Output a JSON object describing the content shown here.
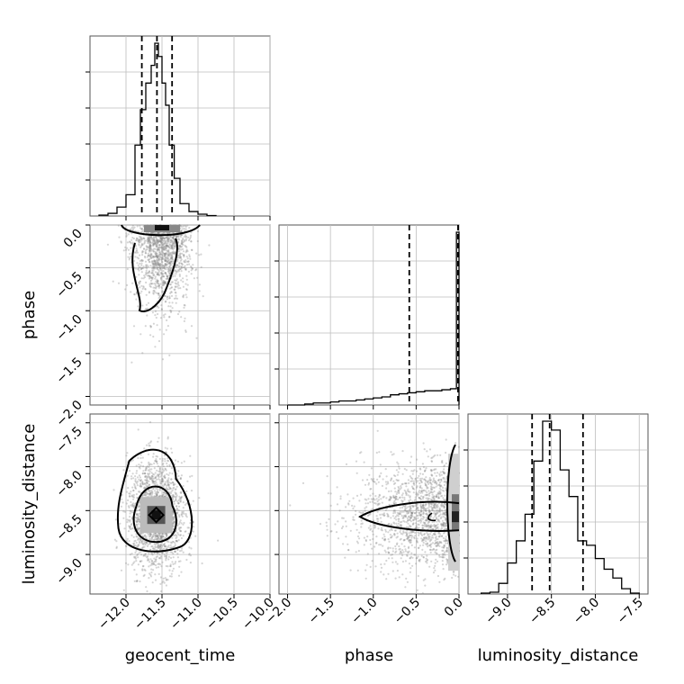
{
  "chart_data": {
    "type": "corner",
    "parameters": [
      "geocent_time",
      "phase",
      "luminosity_distance"
    ],
    "axis_labels": {
      "geocent_time": "geocent_time",
      "phase": "phase",
      "luminosity_distance": "luminosity_distance"
    },
    "ranges": {
      "geocent_time": [
        -12.5,
        -10.0
      ],
      "phase": [
        -2.1,
        0.0
      ],
      "luminosity_distance": [
        -9.45,
        -7.4
      ]
    },
    "ticks": {
      "geocent_time": [
        -12.0,
        -11.5,
        -11.0,
        -10.5,
        -10.0
      ],
      "phase": [
        -2.0,
        -1.5,
        -1.0,
        -0.5,
        0.0
      ],
      "luminosity_distance": [
        -9.0,
        -8.5,
        -8.0,
        -7.5
      ]
    },
    "tick_labels": {
      "geocent_time": [
        "−12.0",
        "−11.5",
        "−11.0",
        "−10.5",
        "−10.0"
      ],
      "phase": [
        "−2.0",
        "−1.5",
        "−1.0",
        "−0.5",
        "0.0"
      ],
      "luminosity_distance": [
        "−9.0",
        "−8.5",
        "−8.0",
        "−7.5"
      ]
    },
    "grid": true,
    "quantiles": {
      "geocent_time": [
        -11.78,
        -11.57,
        -11.36
      ],
      "phase": [
        -0.58,
        -0.0,
        -0.0
      ],
      "luminosity_distance": [
        -8.72,
        -8.52,
        -8.14
      ]
    },
    "histograms": {
      "geocent_time": {
        "bin_edges": [
          -12.375,
          -12.25,
          -12.125,
          -12.0,
          -11.875,
          -11.8,
          -11.725,
          -11.65,
          -11.6,
          -11.55,
          -11.5,
          -11.45,
          -11.4,
          -11.33,
          -11.25,
          -11.125,
          -11.0,
          -10.875,
          -10.75
        ],
        "counts": [
          2,
          6,
          20,
          48,
          160,
          240,
          300,
          340,
          390,
          360,
          300,
          250,
          160,
          85,
          28,
          10,
          4,
          1
        ]
      },
      "phase": {
        "bin_edges": [
          -2.0,
          -1.9,
          -1.8,
          -1.7,
          -1.6,
          -1.5,
          -1.4,
          -1.3,
          -1.2,
          -1.1,
          -1.0,
          -0.9,
          -0.8,
          -0.7,
          -0.6,
          -0.5,
          -0.4,
          -0.3,
          -0.2,
          -0.1,
          -0.03,
          0.0
        ],
        "counts": [
          0,
          0,
          1,
          2,
          2,
          3,
          4,
          4,
          5,
          6,
          7,
          8,
          10,
          11,
          12,
          13,
          14,
          14,
          15,
          16,
          170
        ]
      },
      "luminosity_distance": {
        "bin_edges": [
          -9.3,
          -9.2,
          -9.1,
          -9.0,
          -8.9,
          -8.8,
          -8.7,
          -8.6,
          -8.5,
          -8.4,
          -8.3,
          -8.2,
          -8.1,
          -8.0,
          -7.9,
          -7.8,
          -7.7,
          -7.6,
          -7.5
        ],
        "counts": [
          1,
          2,
          12,
          35,
          60,
          90,
          150,
          195,
          185,
          140,
          110,
          60,
          55,
          40,
          28,
          18,
          6,
          1
        ]
      }
    },
    "scatter": {
      "geocent_time_vs_phase": {
        "center": [
          -11.5,
          -0.55
        ],
        "spread": [
          0.2,
          0.45
        ],
        "n": 1500
      },
      "geocent_time_vs_luminosity_distance": {
        "center": [
          -11.58,
          -8.55
        ],
        "spread": [
          0.2,
          0.32
        ],
        "n": 1800
      },
      "phase_vs_luminosity_distance": {
        "center": [
          -0.3,
          -8.55
        ],
        "spread": [
          0.4,
          0.3
        ],
        "n": 1700
      }
    }
  }
}
